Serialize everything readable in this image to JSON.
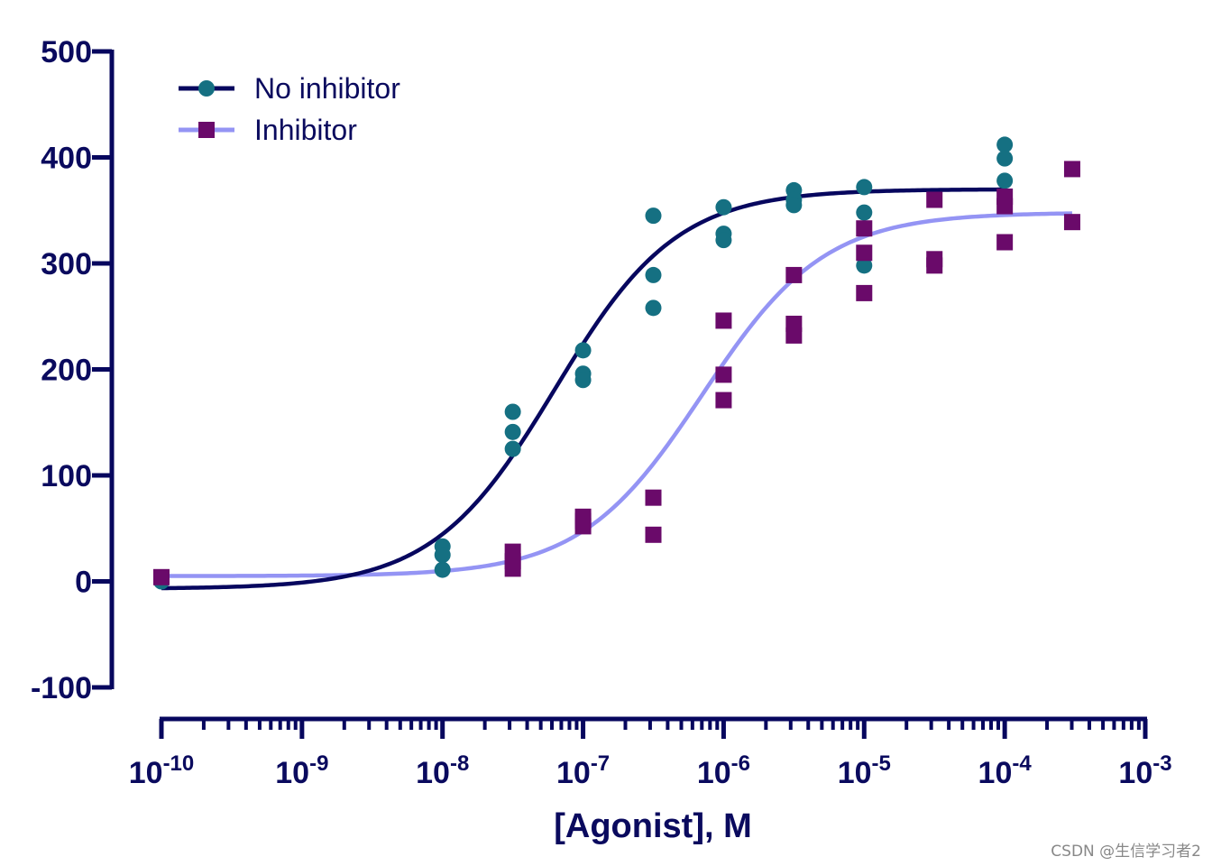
{
  "chart_data": {
    "type": "scatter",
    "title": "",
    "xlabel": "[Agonist], M",
    "ylabel": "",
    "xscale": "log10",
    "xlim": [
      -10,
      -3
    ],
    "ylim": [
      -100,
      500
    ],
    "y_ticks": [
      -100,
      0,
      100,
      200,
      300,
      400,
      500
    ],
    "x_tick_labels": [
      {
        "exp": -10,
        "base": "10",
        "sup": "-10"
      },
      {
        "exp": -9,
        "base": "10",
        "sup": "-9"
      },
      {
        "exp": -8,
        "base": "10",
        "sup": "-8"
      },
      {
        "exp": -7,
        "base": "10",
        "sup": "-7"
      },
      {
        "exp": -6,
        "base": "10",
        "sup": "-6"
      },
      {
        "exp": -5,
        "base": "10",
        "sup": "-5"
      },
      {
        "exp": -4,
        "base": "10",
        "sup": "-4"
      },
      {
        "exp": -3,
        "base": "10",
        "sup": "-3"
      }
    ],
    "grid": false,
    "legend_position": "top-left",
    "series": [
      {
        "name": "No inhibitor",
        "marker": "circle",
        "marker_color": "#157082",
        "line_color": "#07075e",
        "fit": {
          "bottom": -7,
          "top": 370,
          "log_ec50": -7.2,
          "hill": 1.0,
          "x_range": [
            -10,
            -4
          ]
        },
        "points": [
          {
            "logx": -10,
            "y": 0
          },
          {
            "logx": -8,
            "y": 33
          },
          {
            "logx": -8,
            "y": 25
          },
          {
            "logx": -8,
            "y": 11
          },
          {
            "logx": -7.5,
            "y": 160
          },
          {
            "logx": -7.5,
            "y": 141
          },
          {
            "logx": -7.5,
            "y": 125
          },
          {
            "logx": -7,
            "y": 218
          },
          {
            "logx": -7,
            "y": 196
          },
          {
            "logx": -7,
            "y": 190
          },
          {
            "logx": -6.5,
            "y": 345
          },
          {
            "logx": -6.5,
            "y": 289
          },
          {
            "logx": -6.5,
            "y": 258
          },
          {
            "logx": -6,
            "y": 353
          },
          {
            "logx": -6,
            "y": 328
          },
          {
            "logx": -6,
            "y": 322
          },
          {
            "logx": -5.5,
            "y": 369
          },
          {
            "logx": -5.5,
            "y": 360
          },
          {
            "logx": -5.5,
            "y": 355
          },
          {
            "logx": -5,
            "y": 372
          },
          {
            "logx": -5,
            "y": 348
          },
          {
            "logx": -5,
            "y": 298
          },
          {
            "logx": -4,
            "y": 412
          },
          {
            "logx": -4,
            "y": 399
          },
          {
            "logx": -4,
            "y": 378
          }
        ]
      },
      {
        "name": "Inhibitor",
        "marker": "square",
        "marker_color": "#6a0a6a",
        "line_color": "#9494f4",
        "fit": {
          "bottom": 5,
          "top": 348,
          "log_ec50": -6.15,
          "hill": 1.0,
          "x_range": [
            -10,
            -3.52
          ]
        },
        "points": [
          {
            "logx": -10,
            "y": 4
          },
          {
            "logx": -7.5,
            "y": 28
          },
          {
            "logx": -7.5,
            "y": 19
          },
          {
            "logx": -7.5,
            "y": 12
          },
          {
            "logx": -7,
            "y": 61
          },
          {
            "logx": -7,
            "y": 57
          },
          {
            "logx": -7,
            "y": 52
          },
          {
            "logx": -6.5,
            "y": 79
          },
          {
            "logx": -6.5,
            "y": 44
          },
          {
            "logx": -6,
            "y": 246
          },
          {
            "logx": -6,
            "y": 195
          },
          {
            "logx": -6,
            "y": 171
          },
          {
            "logx": -5.5,
            "y": 289
          },
          {
            "logx": -5.5,
            "y": 243
          },
          {
            "logx": -5.5,
            "y": 232
          },
          {
            "logx": -5,
            "y": 333
          },
          {
            "logx": -5,
            "y": 310
          },
          {
            "logx": -5,
            "y": 272
          },
          {
            "logx": -4.5,
            "y": 360
          },
          {
            "logx": -4.5,
            "y": 304
          },
          {
            "logx": -4.5,
            "y": 298
          },
          {
            "logx": -4,
            "y": 363
          },
          {
            "logx": -4,
            "y": 354
          },
          {
            "logx": -4,
            "y": 320
          },
          {
            "logx": -3.52,
            "y": 389
          },
          {
            "logx": -3.52,
            "y": 339
          }
        ]
      }
    ]
  },
  "colors": {
    "axis": "#07075e",
    "text": "#0a0a5e"
  },
  "watermark": "CSDN @生信学习者2"
}
